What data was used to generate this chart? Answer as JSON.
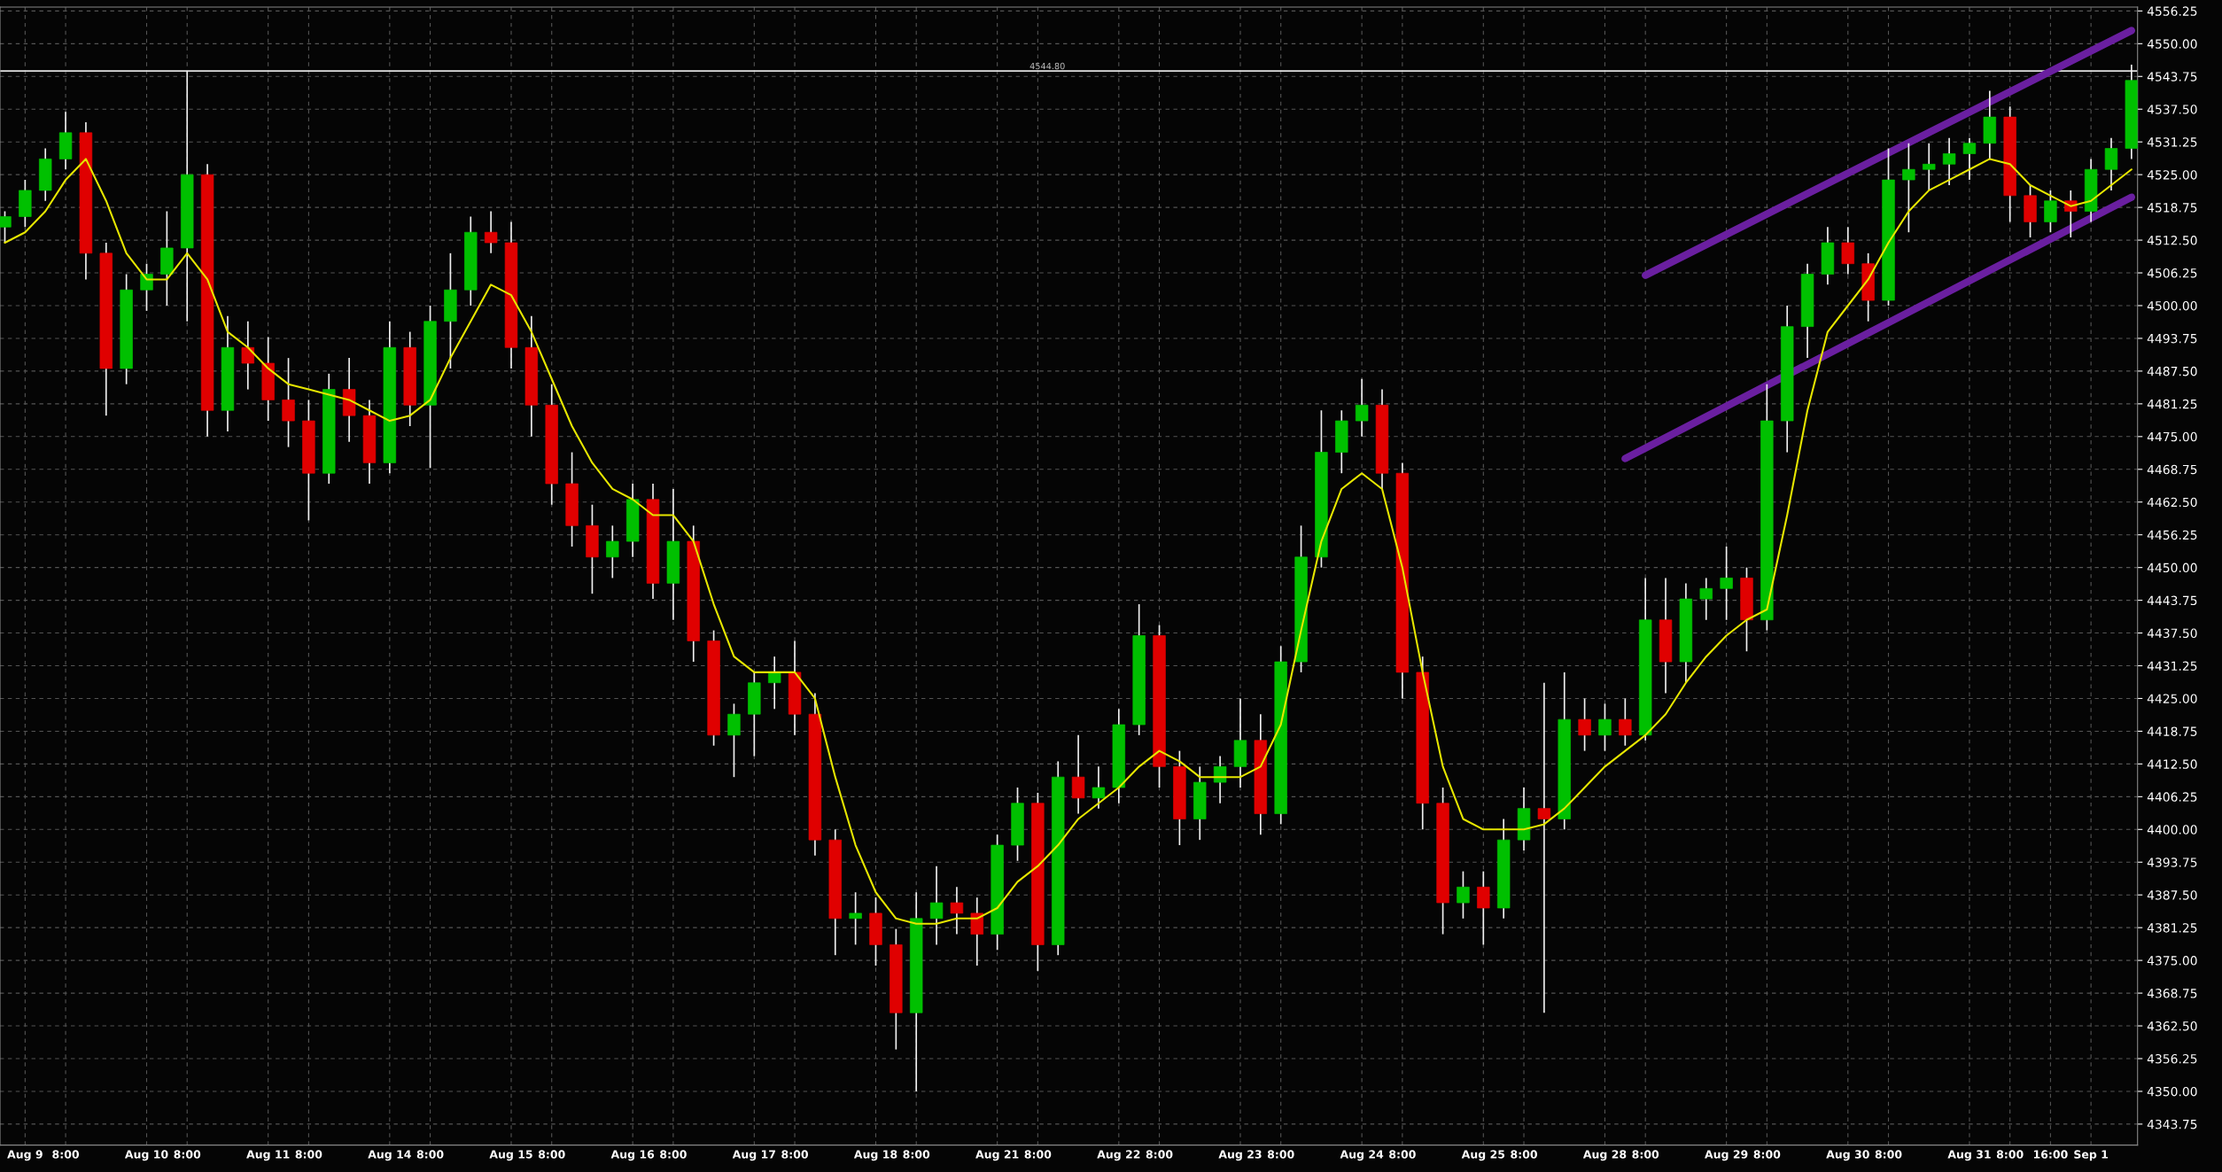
{
  "chart_data": {
    "type": "candlestick",
    "categories": [
      null,
      "Aug 9",
      null,
      "8:00",
      null,
      null,
      null,
      "Aug 10",
      null,
      "8:00",
      null,
      null,
      null,
      "Aug 11",
      null,
      "8:00",
      null,
      null,
      null,
      "Aug 14",
      null,
      "8:00",
      null,
      null,
      null,
      "Aug 15",
      null,
      "8:00",
      null,
      null,
      null,
      "Aug 16",
      null,
      "8:00",
      null,
      null,
      null,
      "Aug 17",
      null,
      "8:00",
      null,
      null,
      null,
      "Aug 18",
      null,
      "8:00",
      null,
      null,
      null,
      "Aug 21",
      null,
      "8:00",
      null,
      null,
      null,
      "Aug 22",
      null,
      "8:00",
      null,
      null,
      null,
      "Aug 23",
      null,
      "8:00",
      null,
      null,
      null,
      "Aug 24",
      null,
      "8:00",
      null,
      null,
      null,
      "Aug 25",
      null,
      "8:00",
      null,
      null,
      null,
      "Aug 28",
      null,
      "8:00",
      null,
      null,
      null,
      "Aug 29",
      null,
      "8:00",
      null,
      null,
      null,
      "Aug 30",
      null,
      "8:00",
      null,
      null,
      null,
      "Aug 31",
      null,
      "8:00",
      null,
      "16:00",
      null,
      "Sep 1",
      null,
      null
    ],
    "ohlc": [
      [
        4515,
        4518,
        4512,
        4517
      ],
      [
        4517,
        4524,
        4515,
        4522
      ],
      [
        4522,
        4530,
        4520,
        4528
      ],
      [
        4528,
        4537,
        4526,
        4533
      ],
      [
        4533,
        4535,
        4505,
        4510
      ],
      [
        4510,
        4512,
        4479,
        4488
      ],
      [
        4488,
        4506,
        4485,
        4503
      ],
      [
        4503,
        4508,
        4499,
        4506
      ],
      [
        4506,
        4518,
        4500,
        4511
      ],
      [
        4511,
        4544.8,
        4497,
        4525
      ],
      [
        4525,
        4527,
        4475,
        4480
      ],
      [
        4480,
        4498,
        4476,
        4492
      ],
      [
        4492,
        4497,
        4484,
        4489
      ],
      [
        4489,
        4494,
        4478,
        4482
      ],
      [
        4482,
        4490,
        4473,
        4478
      ],
      [
        4478,
        4482,
        4459,
        4468
      ],
      [
        4468,
        4487,
        4466,
        4484
      ],
      [
        4484,
        4490,
        4474,
        4479
      ],
      [
        4479,
        4482,
        4466,
        4470
      ],
      [
        4470,
        4497,
        4468,
        4492
      ],
      [
        4492,
        4495,
        4477,
        4481
      ],
      [
        4481,
        4500,
        4469,
        4497
      ],
      [
        4497,
        4510,
        4488,
        4503
      ],
      [
        4503,
        4517,
        4500,
        4514
      ],
      [
        4514,
        4518,
        4510,
        4512
      ],
      [
        4512,
        4516,
        4488,
        4492
      ],
      [
        4492,
        4498,
        4475,
        4481
      ],
      [
        4481,
        4485,
        4462,
        4466
      ],
      [
        4466,
        4472,
        4454,
        4458
      ],
      [
        4458,
        4462,
        4445,
        4452
      ],
      [
        4452,
        4458,
        4448,
        4455
      ],
      [
        4455,
        4466,
        4452,
        4463
      ],
      [
        4463,
        4466,
        4444,
        4447
      ],
      [
        4447,
        4465,
        4440,
        4455
      ],
      [
        4455,
        4458,
        4432,
        4436
      ],
      [
        4436,
        4438,
        4416,
        4418
      ],
      [
        4418,
        4424,
        4410,
        4422
      ],
      [
        4422,
        4430,
        4414,
        4428
      ],
      [
        4428,
        4433,
        4423,
        4430
      ],
      [
        4430,
        4436,
        4418,
        4422
      ],
      [
        4422,
        4426,
        4395,
        4398
      ],
      [
        4398,
        4400,
        4376,
        4383
      ],
      [
        4383,
        4388,
        4378,
        4384
      ],
      [
        4384,
        4387,
        4374,
        4378
      ],
      [
        4378,
        4381,
        4358,
        4365
      ],
      [
        4365,
        4388,
        4350,
        4383
      ],
      [
        4383,
        4393,
        4378,
        4386
      ],
      [
        4386,
        4389,
        4380,
        4384
      ],
      [
        4384,
        4387,
        4374,
        4380
      ],
      [
        4380,
        4399,
        4377,
        4397
      ],
      [
        4397,
        4408,
        4394,
        4405
      ],
      [
        4405,
        4407,
        4373,
        4378
      ],
      [
        4378,
        4413,
        4376,
        4410
      ],
      [
        4410,
        4418,
        4403,
        4406
      ],
      [
        4406,
        4412,
        4404,
        4408
      ],
      [
        4408,
        4423,
        4405,
        4420
      ],
      [
        4420,
        4443,
        4418,
        4437
      ],
      [
        4437,
        4439,
        4408,
        4412
      ],
      [
        4412,
        4415,
        4397,
        4402
      ],
      [
        4402,
        4412,
        4398,
        4409
      ],
      [
        4409,
        4414,
        4405,
        4412
      ],
      [
        4412,
        4425,
        4408,
        4417
      ],
      [
        4417,
        4422,
        4399,
        4403
      ],
      [
        4403,
        4435,
        4401,
        4432
      ],
      [
        4432,
        4458,
        4430,
        4452
      ],
      [
        4452,
        4480,
        4450,
        4472
      ],
      [
        4472,
        4480,
        4468,
        4478
      ],
      [
        4478,
        4486,
        4475,
        4481
      ],
      [
        4481,
        4484,
        4465,
        4468
      ],
      [
        4468,
        4470,
        4425,
        4430
      ],
      [
        4430,
        4433,
        4400,
        4405
      ],
      [
        4405,
        4408,
        4380,
        4386
      ],
      [
        4386,
        4392,
        4383,
        4389
      ],
      [
        4389,
        4392,
        4378,
        4385
      ],
      [
        4385,
        4402,
        4383,
        4398
      ],
      [
        4398,
        4408,
        4396,
        4404
      ],
      [
        4404,
        4428,
        4365,
        4402
      ],
      [
        4402,
        4430,
        4400,
        4421
      ],
      [
        4421,
        4425,
        4415,
        4418
      ],
      [
        4418,
        4424,
        4415,
        4421
      ],
      [
        4421,
        4425,
        4416,
        4418
      ],
      [
        4418,
        4448,
        4417,
        4440
      ],
      [
        4440,
        4448,
        4426,
        4432
      ],
      [
        4432,
        4447,
        4428,
        4444
      ],
      [
        4444,
        4448,
        4440,
        4446
      ],
      [
        4446,
        4454,
        4440,
        4448
      ],
      [
        4448,
        4450,
        4434,
        4440
      ],
      [
        4440,
        4485,
        4438,
        4478
      ],
      [
        4478,
        4500,
        4472,
        4496
      ],
      [
        4496,
        4508,
        4490,
        4506
      ],
      [
        4506,
        4515,
        4504,
        4512
      ],
      [
        4512,
        4515,
        4506,
        4508
      ],
      [
        4508,
        4510,
        4497,
        4501
      ],
      [
        4501,
        4530,
        4500,
        4524
      ],
      [
        4524,
        4531,
        4514,
        4526
      ],
      [
        4526,
        4531,
        4522,
        4527
      ],
      [
        4527,
        4532,
        4523,
        4529
      ],
      [
        4529,
        4532,
        4524,
        4531
      ],
      [
        4531,
        4541,
        4528,
        4536
      ],
      [
        4536,
        4538,
        4516,
        4521
      ],
      [
        4521,
        4523,
        4513,
        4516
      ],
      [
        4516,
        4522,
        4514,
        4520
      ],
      [
        4520,
        4522,
        4513,
        4518
      ],
      [
        4518,
        4528,
        4516,
        4526
      ],
      [
        4526,
        4532,
        4522,
        4530
      ],
      [
        4530,
        4546,
        4528,
        4543
      ]
    ],
    "colors": [
      "#00c000",
      "#00c000",
      "#00c000",
      "#00c000",
      "#e00000",
      "#e00000",
      "#00c000",
      "#00c000",
      "#00c000",
      "#00c000",
      "#e00000",
      "#00c000",
      "#e00000",
      "#e00000",
      "#e00000",
      "#e00000",
      "#00c000",
      "#e00000",
      "#e00000",
      "#00c000",
      "#e00000",
      "#00c000",
      "#00c000",
      "#00c000",
      "#e00000",
      "#e00000",
      "#e00000",
      "#e00000",
      "#e00000",
      "#e00000",
      "#00c000",
      "#00c000",
      "#e00000",
      "#00c000",
      "#e00000",
      "#e00000",
      "#00c000",
      "#00c000",
      "#00c000",
      "#e00000",
      "#e00000",
      "#e00000",
      "#00c000",
      "#e00000",
      "#e00000",
      "#00c000",
      "#00c000",
      "#e00000",
      "#e00000",
      "#00c000",
      "#00c000",
      "#e00000",
      "#00c000",
      "#e00000",
      "#00c000",
      "#00c000",
      "#00c000",
      "#e00000",
      "#e00000",
      "#00c000",
      "#00c000",
      "#00c000",
      "#e00000",
      "#00c000",
      "#00c000",
      "#00c000",
      "#00c000",
      "#00c000",
      "#e00000",
      "#e00000",
      "#e00000",
      "#e00000",
      "#00c000",
      "#e00000",
      "#00c000",
      "#00c000",
      "#e00000",
      "#00c000",
      "#e00000",
      "#00c000",
      "#e00000",
      "#00c000",
      "#e00000",
      "#00c000",
      "#00c000",
      "#00c000",
      "#e00000",
      "#00c000",
      "#00c000",
      "#00c000",
      "#00c000",
      "#e00000",
      "#e00000",
      "#00c000",
      "#00c000",
      "#00c000",
      "#00c000",
      "#00c000",
      "#00c000",
      "#e00000",
      "#e00000",
      "#00c000",
      "#e00000",
      "#00c000",
      "#00c000",
      "#00c000"
    ],
    "series": [
      {
        "type": "line",
        "color": "#e6e600",
        "values": [
          4512,
          4514,
          4518,
          4524,
          4528,
          4520,
          4510,
          4505,
          4505,
          4510,
          4505,
          4495,
          4492,
          4488,
          4485,
          4484,
          4483,
          4482,
          4480,
          4478,
          4479,
          4482,
          4490,
          4497,
          4504,
          4502,
          4495,
          4486,
          4477,
          4470,
          4465,
          4463,
          4460,
          4460,
          4455,
          4443,
          4433,
          4430,
          4430,
          4430,
          4425,
          4410,
          4397,
          4388,
          4383,
          4382,
          4382,
          4383,
          4383,
          4385,
          4390,
          4393,
          4397,
          4402,
          4405,
          4408,
          4412,
          4415,
          4413,
          4410,
          4410,
          4410,
          4412,
          4420,
          4438,
          4455,
          4465,
          4468,
          4465,
          4450,
          4430,
          4412,
          4402,
          4400,
          4400,
          4400,
          4401,
          4404,
          4408,
          4412,
          4415,
          4418,
          4422,
          4428,
          4433,
          4437,
          4440,
          4442,
          4460,
          4480,
          4495,
          4500,
          4505,
          4512,
          4518,
          4522,
          4524,
          4526,
          4528,
          4527,
          4523,
          4521,
          4519,
          4520,
          4523,
          4526
        ]
      },
      {
        "type": "line",
        "color": "#6a1fa0",
        "values": [
          null,
          null,
          null,
          null,
          null,
          null,
          null,
          null,
          null,
          null,
          null,
          null,
          null,
          null,
          null,
          null,
          null,
          null,
          null,
          null,
          null,
          null,
          null,
          null,
          null,
          null,
          null,
          null,
          null,
          null,
          null,
          null,
          null,
          null,
          null,
          null,
          null,
          null,
          null,
          null,
          null,
          null,
          null,
          null,
          null,
          null,
          null,
          null,
          null,
          null,
          null,
          null,
          null,
          null,
          null,
          null,
          null,
          null,
          null,
          null,
          null,
          null,
          null,
          null,
          null,
          null,
          null,
          null,
          null,
          null,
          null,
          null,
          null,
          null,
          null,
          null,
          null,
          null,
          null,
          null,
          null,
          4505.8,
          null,
          null,
          null,
          null,
          null,
          null,
          null,
          null,
          null,
          null,
          null,
          null,
          null,
          null,
          null,
          null,
          null,
          null,
          null,
          null,
          null,
          null,
          null,
          4552.5
        ]
      },
      {
        "type": "line",
        "color": "#6a1fa0",
        "values": [
          null,
          null,
          null,
          null,
          null,
          null,
          null,
          null,
          null,
          null,
          null,
          null,
          null,
          null,
          null,
          null,
          null,
          null,
          null,
          null,
          null,
          null,
          null,
          null,
          null,
          null,
          null,
          null,
          null,
          null,
          null,
          null,
          null,
          null,
          null,
          null,
          null,
          null,
          null,
          null,
          null,
          null,
          null,
          null,
          null,
          null,
          null,
          null,
          null,
          null,
          null,
          null,
          null,
          null,
          null,
          null,
          null,
          null,
          null,
          null,
          null,
          null,
          null,
          null,
          null,
          null,
          null,
          null,
          null,
          null,
          null,
          null,
          null,
          null,
          null,
          null,
          null,
          null,
          null,
          null,
          4470.8,
          null,
          null,
          null,
          null,
          null,
          null,
          null,
          null,
          null,
          null,
          null,
          null,
          null,
          null,
          null,
          null,
          null,
          null,
          null,
          null,
          null,
          null,
          null,
          null,
          4520.7
        ]
      }
    ],
    "ref_lines": [
      {
        "axis": "y",
        "value": 4544.8,
        "label": "4544.80",
        "color": "#e0e0e0"
      }
    ],
    "ylim": [
      4339.75,
      4557
    ],
    "yticks": [
      4343.75,
      {
        "value": 4350,
        "label": "4350.00"
      },
      4356.25,
      {
        "value": 4362.5,
        "label": "4362.50"
      },
      4368.75,
      {
        "value": 4375,
        "label": "4375.00"
      },
      4381.25,
      {
        "value": 4387.5,
        "label": "4387.50"
      },
      4393.75,
      {
        "value": 4400,
        "label": "4400.00"
      },
      4406.25,
      {
        "value": 4412.5,
        "label": "4412.50"
      },
      4418.75,
      {
        "value": 4425,
        "label": "4425.00"
      },
      4431.25,
      {
        "value": 4437.5,
        "label": "4437.50"
      },
      4443.75,
      {
        "value": 4450,
        "label": "4450.00"
      },
      4456.25,
      {
        "value": 4462.5,
        "label": "4462.50"
      },
      4468.75,
      {
        "value": 4475,
        "label": "4475.00"
      },
      4481.25,
      {
        "value": 4487.5,
        "label": "4487.50"
      },
      4493.75,
      {
        "value": 4500,
        "label": "4500.00"
      },
      4506.25,
      {
        "value": 4512.5,
        "label": "4512.50"
      },
      4518.75,
      {
        "value": 4525,
        "label": "4525.00"
      },
      4531.25,
      {
        "value": 4537.5,
        "label": "4537.50"
      },
      4543.75,
      {
        "value": 4550,
        "label": "4550.00"
      },
      4556.25
    ],
    "grid": true
  }
}
